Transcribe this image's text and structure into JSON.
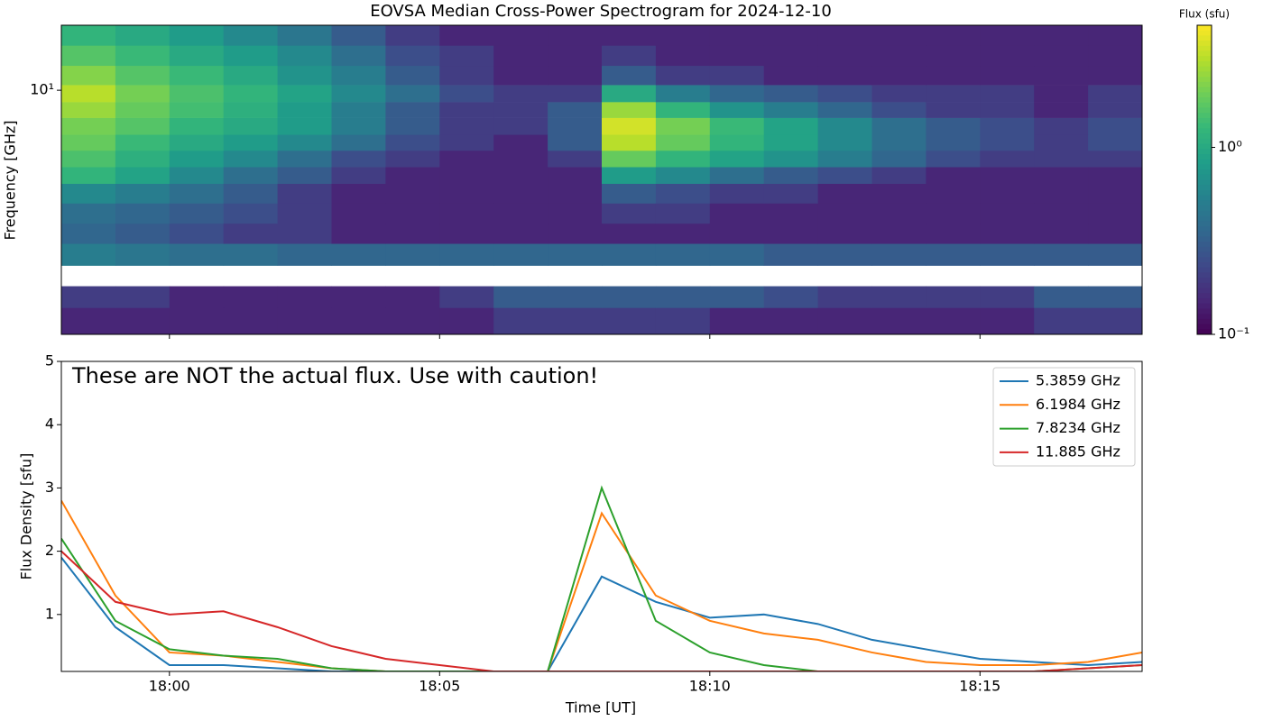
{
  "chart_data": [
    {
      "type": "heatmap",
      "title": "EOVSA Median Cross-Power Spectrogram for 2024-12-10",
      "ylabel": "Frequency [GHz]",
      "colorbar_label": "Flux (sfu)",
      "colormap": "viridis",
      "ylog": true,
      "ylim": [
        1.1,
        18
      ],
      "yticks": [
        {
          "value": 10,
          "label": "10¹"
        }
      ],
      "clim": [
        0.1,
        4.5
      ],
      "cticks": [
        {
          "value": 1,
          "label": "10⁰"
        },
        {
          "value": 0.1,
          "label": "10⁻¹"
        }
      ],
      "xbins": [
        "17:58",
        "17:59",
        "18:00",
        "18:01",
        "18:02",
        "18:03",
        "18:04",
        "18:05",
        "18:06",
        "18:07",
        "18:08",
        "18:09",
        "18:10",
        "18:11",
        "18:12",
        "18:13",
        "18:14",
        "18:15",
        "18:16",
        "18:17",
        "18:18"
      ],
      "ybins": [
        1.1,
        1.4,
        1.7,
        2.05,
        2.5,
        3.0,
        3.6,
        4.3,
        5.0,
        5.8,
        6.7,
        7.8,
        9.0,
        10.5,
        12.5,
        15,
        18
      ],
      "z": [
        [
          0.15,
          0.15,
          0.15,
          0.15,
          0.15,
          0.15,
          0.15,
          0.15,
          0.2,
          0.2,
          0.2,
          0.2,
          0.15,
          0.15,
          0.15,
          0.15,
          0.15,
          0.15,
          0.2,
          0.2
        ],
        [
          0.2,
          0.2,
          0.15,
          0.15,
          0.15,
          0.15,
          0.15,
          0.2,
          0.3,
          0.3,
          0.3,
          0.3,
          0.3,
          0.25,
          0.2,
          0.2,
          0.2,
          0.2,
          0.3,
          0.3
        ],
        [
          null,
          null,
          null,
          null,
          null,
          null,
          null,
          null,
          null,
          null,
          null,
          null,
          null,
          null,
          null,
          null,
          null,
          null,
          null,
          null
        ],
        [
          0.5,
          0.45,
          0.4,
          0.4,
          0.35,
          0.35,
          0.35,
          0.35,
          0.35,
          0.35,
          0.35,
          0.35,
          0.35,
          0.3,
          0.3,
          0.3,
          0.3,
          0.3,
          0.3,
          0.3
        ],
        [
          0.35,
          0.3,
          0.25,
          0.2,
          0.2,
          0.15,
          0.15,
          0.15,
          0.15,
          0.15,
          0.15,
          0.15,
          0.15,
          0.15,
          0.15,
          0.15,
          0.15,
          0.15,
          0.15,
          0.15
        ],
        [
          0.4,
          0.35,
          0.3,
          0.25,
          0.2,
          0.15,
          0.15,
          0.15,
          0.15,
          0.15,
          0.2,
          0.2,
          0.15,
          0.15,
          0.15,
          0.15,
          0.15,
          0.15,
          0.15,
          0.15
        ],
        [
          0.6,
          0.5,
          0.4,
          0.3,
          0.2,
          0.15,
          0.15,
          0.15,
          0.15,
          0.15,
          0.3,
          0.25,
          0.2,
          0.2,
          0.15,
          0.15,
          0.15,
          0.15,
          0.15,
          0.15
        ],
        [
          1.2,
          0.9,
          0.6,
          0.4,
          0.3,
          0.2,
          0.15,
          0.15,
          0.15,
          0.15,
          0.8,
          0.6,
          0.4,
          0.3,
          0.25,
          0.2,
          0.15,
          0.15,
          0.15,
          0.15
        ],
        [
          1.5,
          1.1,
          0.8,
          0.6,
          0.4,
          0.25,
          0.2,
          0.15,
          0.15,
          0.2,
          1.8,
          1.2,
          0.9,
          0.7,
          0.5,
          0.35,
          0.25,
          0.2,
          0.2,
          0.2
        ],
        [
          1.8,
          1.3,
          1.0,
          0.8,
          0.6,
          0.4,
          0.25,
          0.2,
          0.15,
          0.3,
          3.0,
          1.8,
          1.2,
          0.9,
          0.6,
          0.4,
          0.3,
          0.25,
          0.2,
          0.25
        ],
        [
          2.0,
          1.6,
          1.2,
          1.0,
          0.8,
          0.5,
          0.3,
          0.2,
          0.2,
          0.3,
          3.5,
          2.0,
          1.3,
          0.9,
          0.6,
          0.4,
          0.3,
          0.25,
          0.2,
          0.25
        ],
        [
          2.5,
          1.8,
          1.4,
          1.1,
          0.8,
          0.5,
          0.3,
          0.2,
          0.2,
          0.3,
          2.5,
          1.2,
          0.7,
          0.5,
          0.35,
          0.25,
          0.2,
          0.2,
          0.15,
          0.2
        ],
        [
          3.0,
          2.0,
          1.5,
          1.2,
          0.9,
          0.6,
          0.4,
          0.25,
          0.2,
          0.2,
          1.0,
          0.5,
          0.35,
          0.3,
          0.25,
          0.2,
          0.2,
          0.2,
          0.15,
          0.2
        ],
        [
          2.2,
          1.6,
          1.3,
          1.0,
          0.7,
          0.5,
          0.3,
          0.2,
          0.15,
          0.15,
          0.3,
          0.2,
          0.2,
          0.15,
          0.15,
          0.15,
          0.15,
          0.15,
          0.15,
          0.15
        ],
        [
          1.6,
          1.3,
          1.0,
          0.8,
          0.6,
          0.4,
          0.25,
          0.2,
          0.15,
          0.15,
          0.2,
          0.15,
          0.15,
          0.15,
          0.15,
          0.15,
          0.15,
          0.15,
          0.15,
          0.15
        ],
        [
          1.2,
          1.0,
          0.8,
          0.6,
          0.45,
          0.3,
          0.2,
          0.15,
          0.15,
          0.15,
          0.15,
          0.15,
          0.15,
          0.15,
          0.15,
          0.15,
          0.15,
          0.15,
          0.15,
          0.15
        ]
      ]
    },
    {
      "type": "line",
      "annotation": "These are NOT the actual flux. Use with caution!",
      "xlabel": "Time [UT]",
      "ylabel": "Flux Density [sfu]",
      "x": [
        "17:58",
        "17:59",
        "18:00",
        "18:01",
        "18:02",
        "18:03",
        "18:04",
        "18:05",
        "18:06",
        "18:07",
        "18:08",
        "18:09",
        "18:10",
        "18:11",
        "18:12",
        "18:13",
        "18:14",
        "18:15",
        "18:16",
        "18:17",
        "18:18"
      ],
      "xlim": [
        "17:58",
        "18:18"
      ],
      "xticks": [
        "18:00",
        "18:05",
        "18:10",
        "18:15"
      ],
      "ylim": [
        0.1,
        5
      ],
      "yticks": [
        1,
        2,
        3,
        4,
        5
      ],
      "legend": "upper right",
      "series": [
        {
          "name": "5.3859 GHz",
          "color": "#1f77b4",
          "values": [
            1.9,
            0.8,
            0.2,
            0.2,
            0.15,
            0.1,
            0.1,
            0.1,
            0.1,
            0.1,
            1.6,
            1.2,
            0.95,
            1.0,
            0.85,
            0.6,
            0.45,
            0.3,
            0.25,
            0.2,
            0.25
          ]
        },
        {
          "name": "6.1984 GHz",
          "color": "#ff7f0e",
          "values": [
            2.8,
            1.3,
            0.4,
            0.35,
            0.25,
            0.15,
            0.1,
            0.1,
            0.1,
            0.1,
            2.6,
            1.3,
            0.9,
            0.7,
            0.6,
            0.4,
            0.25,
            0.2,
            0.2,
            0.25,
            0.4
          ]
        },
        {
          "name": "7.8234 GHz",
          "color": "#2ca02c",
          "values": [
            2.2,
            0.9,
            0.45,
            0.35,
            0.3,
            0.15,
            0.1,
            0.1,
            0.1,
            0.1,
            3.0,
            0.9,
            0.4,
            0.2,
            0.1,
            0.1,
            0.1,
            0.1,
            0.1,
            0.15,
            0.2
          ]
        },
        {
          "name": "11.885 GHz",
          "color": "#d62728",
          "values": [
            2.0,
            1.2,
            1.0,
            1.05,
            0.8,
            0.5,
            0.3,
            0.2,
            0.1,
            0.1,
            0.1,
            0.1,
            0.1,
            0.1,
            0.1,
            0.1,
            0.1,
            0.1,
            0.1,
            0.15,
            0.2
          ]
        }
      ]
    }
  ]
}
